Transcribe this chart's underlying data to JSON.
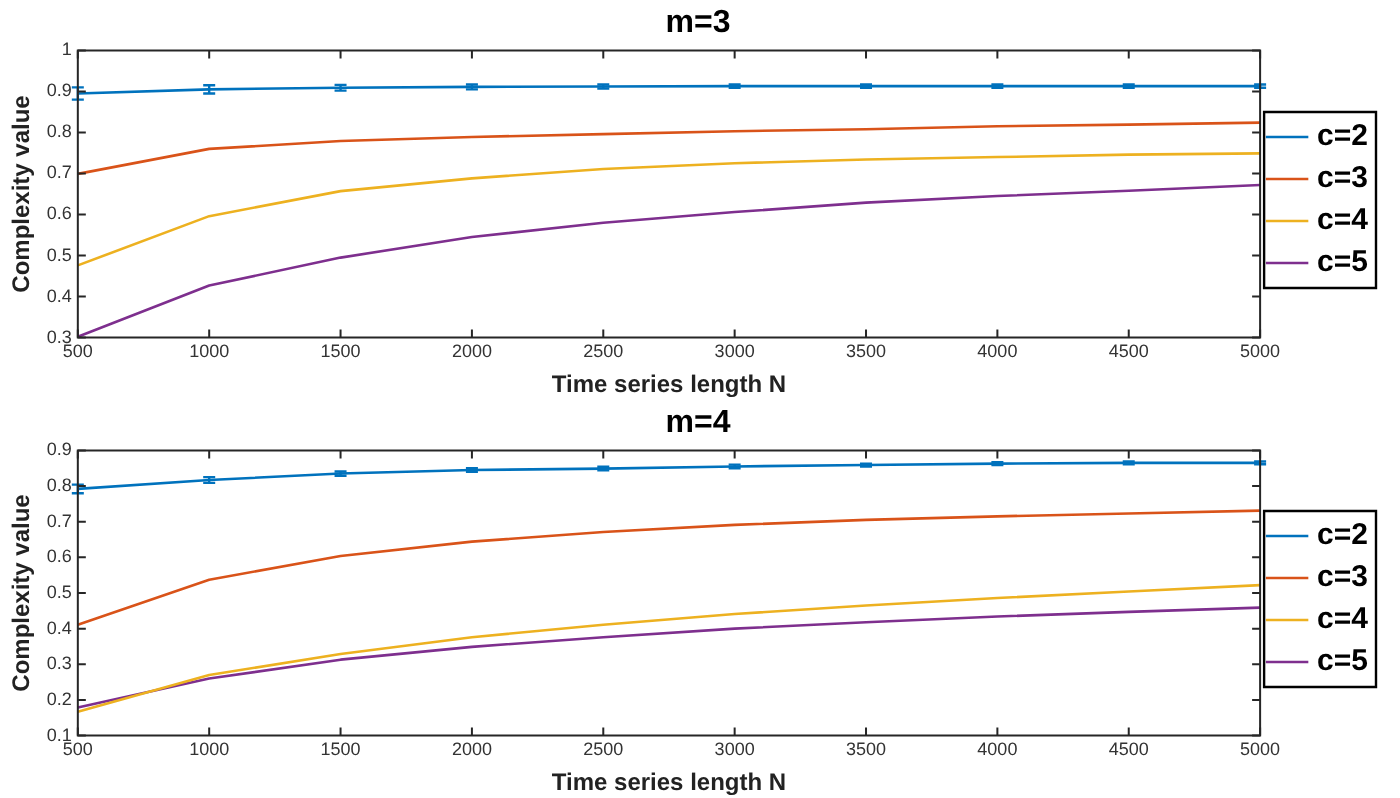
{
  "chart_data": [
    {
      "type": "line",
      "title": "m=3",
      "xlabel": "Time series length N",
      "ylabel": "Complexity value",
      "x": [
        500,
        1000,
        1500,
        2000,
        2500,
        3000,
        3500,
        4000,
        4500,
        5000
      ],
      "xlim": [
        500,
        5000
      ],
      "xticks": [
        500,
        1000,
        1500,
        2000,
        2500,
        3000,
        3500,
        4000,
        4500,
        5000
      ],
      "ylim": [
        0.3,
        1
      ],
      "yticks": [
        0.3,
        0.4,
        0.5,
        0.6,
        0.7,
        0.8,
        0.9,
        1
      ],
      "legend": "right",
      "grid": false,
      "marker": "none",
      "line_style": "solid",
      "series": [
        {
          "name": "c=2",
          "color": "#0072bd",
          "values": [
            0.895,
            0.905,
            0.909,
            0.911,
            0.912,
            0.913,
            0.913,
            0.913,
            0.913,
            0.913
          ],
          "errors": [
            0.015,
            0.01,
            0.007,
            0.006,
            0.005,
            0.004,
            0.004,
            0.004,
            0.004,
            0.004
          ]
        },
        {
          "name": "c=3",
          "color": "#d95319",
          "values": [
            0.699,
            0.76,
            0.779,
            0.789,
            0.796,
            0.803,
            0.808,
            0.815,
            0.819,
            0.824
          ]
        },
        {
          "name": "c=4",
          "color": "#edb120",
          "values": [
            0.476,
            0.596,
            0.657,
            0.688,
            0.711,
            0.725,
            0.734,
            0.74,
            0.746,
            0.749
          ]
        },
        {
          "name": "c=5",
          "color": "#7e2f8e",
          "values": [
            0.302,
            0.427,
            0.495,
            0.545,
            0.58,
            0.606,
            0.629,
            0.645,
            0.658,
            0.672
          ]
        }
      ]
    },
    {
      "type": "line",
      "title": "m=4",
      "xlabel": "Time series length N",
      "ylabel": "Complexity value",
      "x": [
        500,
        1000,
        1500,
        2000,
        2500,
        3000,
        3500,
        4000,
        4500,
        5000
      ],
      "xlim": [
        500,
        5000
      ],
      "xticks": [
        500,
        1000,
        1500,
        2000,
        2500,
        3000,
        3500,
        4000,
        4500,
        5000
      ],
      "ylim": [
        0.1,
        0.9
      ],
      "yticks": [
        0.1,
        0.2,
        0.3,
        0.4,
        0.5,
        0.6,
        0.7,
        0.8,
        0.9
      ],
      "legend": "right",
      "grid": false,
      "marker": "none",
      "line_style": "solid",
      "series": [
        {
          "name": "c=2",
          "color": "#0072bd",
          "values": [
            0.792,
            0.817,
            0.835,
            0.845,
            0.849,
            0.855,
            0.859,
            0.863,
            0.865,
            0.865
          ],
          "errors": [
            0.012,
            0.008,
            0.006,
            0.005,
            0.005,
            0.005,
            0.004,
            0.004,
            0.004,
            0.004
          ]
        },
        {
          "name": "c=3",
          "color": "#d95319",
          "values": [
            0.411,
            0.537,
            0.604,
            0.644,
            0.671,
            0.691,
            0.705,
            0.715,
            0.723,
            0.731
          ]
        },
        {
          "name": "c=4",
          "color": "#edb120",
          "values": [
            0.167,
            0.27,
            0.329,
            0.376,
            0.411,
            0.441,
            0.465,
            0.486,
            0.504,
            0.522
          ]
        },
        {
          "name": "c=5",
          "color": "#7e2f8e",
          "values": [
            0.179,
            0.26,
            0.313,
            0.349,
            0.376,
            0.4,
            0.418,
            0.434,
            0.447,
            0.459
          ]
        }
      ]
    }
  ]
}
